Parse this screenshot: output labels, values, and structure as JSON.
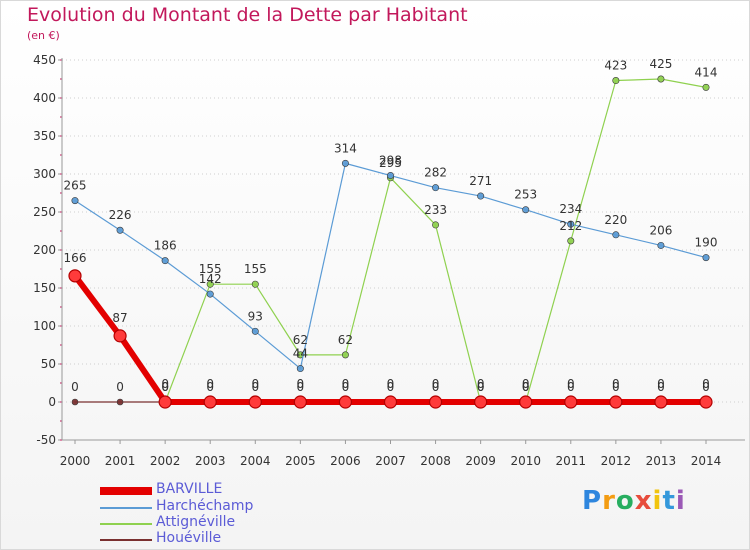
{
  "title": "Evolution du Montant de la Dette par Habitant",
  "subtitle": "(en €)",
  "chart_data": {
    "type": "line",
    "title": "Evolution du Montant de la Dette par Habitant",
    "subtitle": "(en €)",
    "xlabel": "",
    "ylabel": "",
    "x": [
      "2000",
      "2001",
      "2002",
      "2003",
      "2004",
      "2005",
      "2006",
      "2007",
      "2008",
      "2009",
      "2010",
      "2011",
      "2012",
      "2013",
      "2014"
    ],
    "y_ticks": [
      "-50",
      "0",
      "50",
      "100",
      "150",
      "200",
      "250",
      "300",
      "350",
      "400",
      "450"
    ],
    "ylim": [
      -50,
      450
    ],
    "grid": "horizontal dotted",
    "legend_position": "bottom-left",
    "series": [
      {
        "name": "BARVILLE",
        "color": "#e30000",
        "values": [
          166,
          87,
          0,
          0,
          0,
          0,
          0,
          0,
          0,
          0,
          0,
          0,
          0,
          0,
          0
        ],
        "labels": [
          "166",
          "87",
          "0",
          "0",
          "0",
          "0",
          "0",
          "0",
          "0",
          "0",
          "0",
          "0",
          "0",
          "0",
          "0"
        ]
      },
      {
        "name": "Harchéchamp",
        "color": "#5b9bd5",
        "values": [
          265,
          226,
          186,
          142,
          93,
          44,
          314,
          298,
          282,
          271,
          253,
          234,
          220,
          206,
          190
        ],
        "labels": [
          "265",
          "226",
          "186",
          "142",
          "93",
          "44",
          "314",
          "298",
          "282",
          "271",
          "253",
          "234",
          "220",
          "206",
          "190"
        ]
      },
      {
        "name": "Attignéville",
        "color": "#8fd14f",
        "values": [
          null,
          null,
          0,
          155,
          155,
          62,
          62,
          295,
          233,
          0,
          0,
          212,
          423,
          425,
          414
        ],
        "labels": [
          "",
          "",
          "0",
          "155",
          "155",
          "62",
          "62",
          "295",
          "233",
          "0",
          "0",
          "212",
          "423",
          "425",
          "414"
        ]
      },
      {
        "name": "Houéville",
        "color": "#7a3030",
        "values": [
          0,
          0,
          0,
          0,
          0,
          0,
          0,
          0,
          0,
          0,
          0,
          0,
          0,
          0,
          0
        ],
        "labels": [
          "0",
          "0",
          "0",
          "0",
          "0",
          "0",
          "0",
          "0",
          "0",
          "0",
          "0",
          "0",
          "0",
          "0",
          "0"
        ]
      }
    ]
  },
  "legend": [
    {
      "label": "BARVILLE",
      "color": "#e30000",
      "label_color": "#5b5bd6"
    },
    {
      "label": "Harchéchamp",
      "color": "#5b9bd5",
      "label_color": "#5b5bd6"
    },
    {
      "label": "Attignéville",
      "color": "#8fd14f",
      "label_color": "#5b5bd6"
    },
    {
      "label": "Houéville",
      "color": "#7a3030",
      "label_color": "#5b5bd6"
    }
  ],
  "logo": {
    "text": "Proxiti",
    "letters": [
      "P",
      "r",
      "o",
      "x",
      "i",
      "t",
      "i"
    ],
    "colors": [
      "#2e86de",
      "#f39c12",
      "#27ae60",
      "#e74c3c",
      "#f1c40f",
      "#3498db",
      "#9b59b6"
    ]
  }
}
